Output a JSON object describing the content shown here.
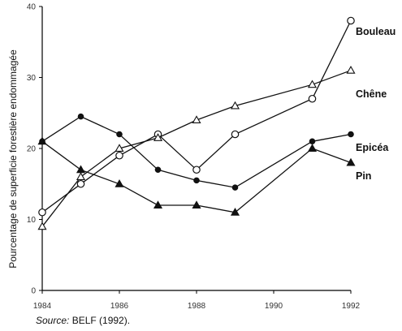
{
  "chart_data": {
    "type": "line",
    "ylabel": "Pourcentage de superficie forestière endommagée",
    "xlabel": "",
    "x": [
      1984,
      1985,
      1986,
      1987,
      1988,
      1989,
      1991,
      1992
    ],
    "xticks": [
      "1984",
      "1986",
      "1988",
      "1990",
      "1992"
    ],
    "xlim": [
      1984,
      1992
    ],
    "ylim": [
      0,
      40
    ],
    "yticks": [
      "0",
      "10",
      "20",
      "30",
      "40"
    ],
    "grid": false,
    "series": [
      {
        "name": "Bouleau",
        "marker": "circle-open",
        "values": [
          11,
          15,
          19,
          22,
          17,
          22,
          27,
          38
        ]
      },
      {
        "name": "Chêne",
        "marker": "triangle-open",
        "values": [
          9,
          16,
          20,
          21.5,
          24,
          26,
          29,
          31
        ]
      },
      {
        "name": "Epicéa",
        "marker": "circle-filled",
        "values": [
          21,
          24.5,
          22,
          17,
          15.5,
          14.5,
          21,
          22
        ]
      },
      {
        "name": "Pin",
        "marker": "triangle-filled",
        "values": [
          21,
          17,
          15,
          12,
          12,
          11,
          20,
          18
        ]
      }
    ]
  },
  "source": {
    "label": "Source:",
    "text": " BELF (1992)."
  }
}
